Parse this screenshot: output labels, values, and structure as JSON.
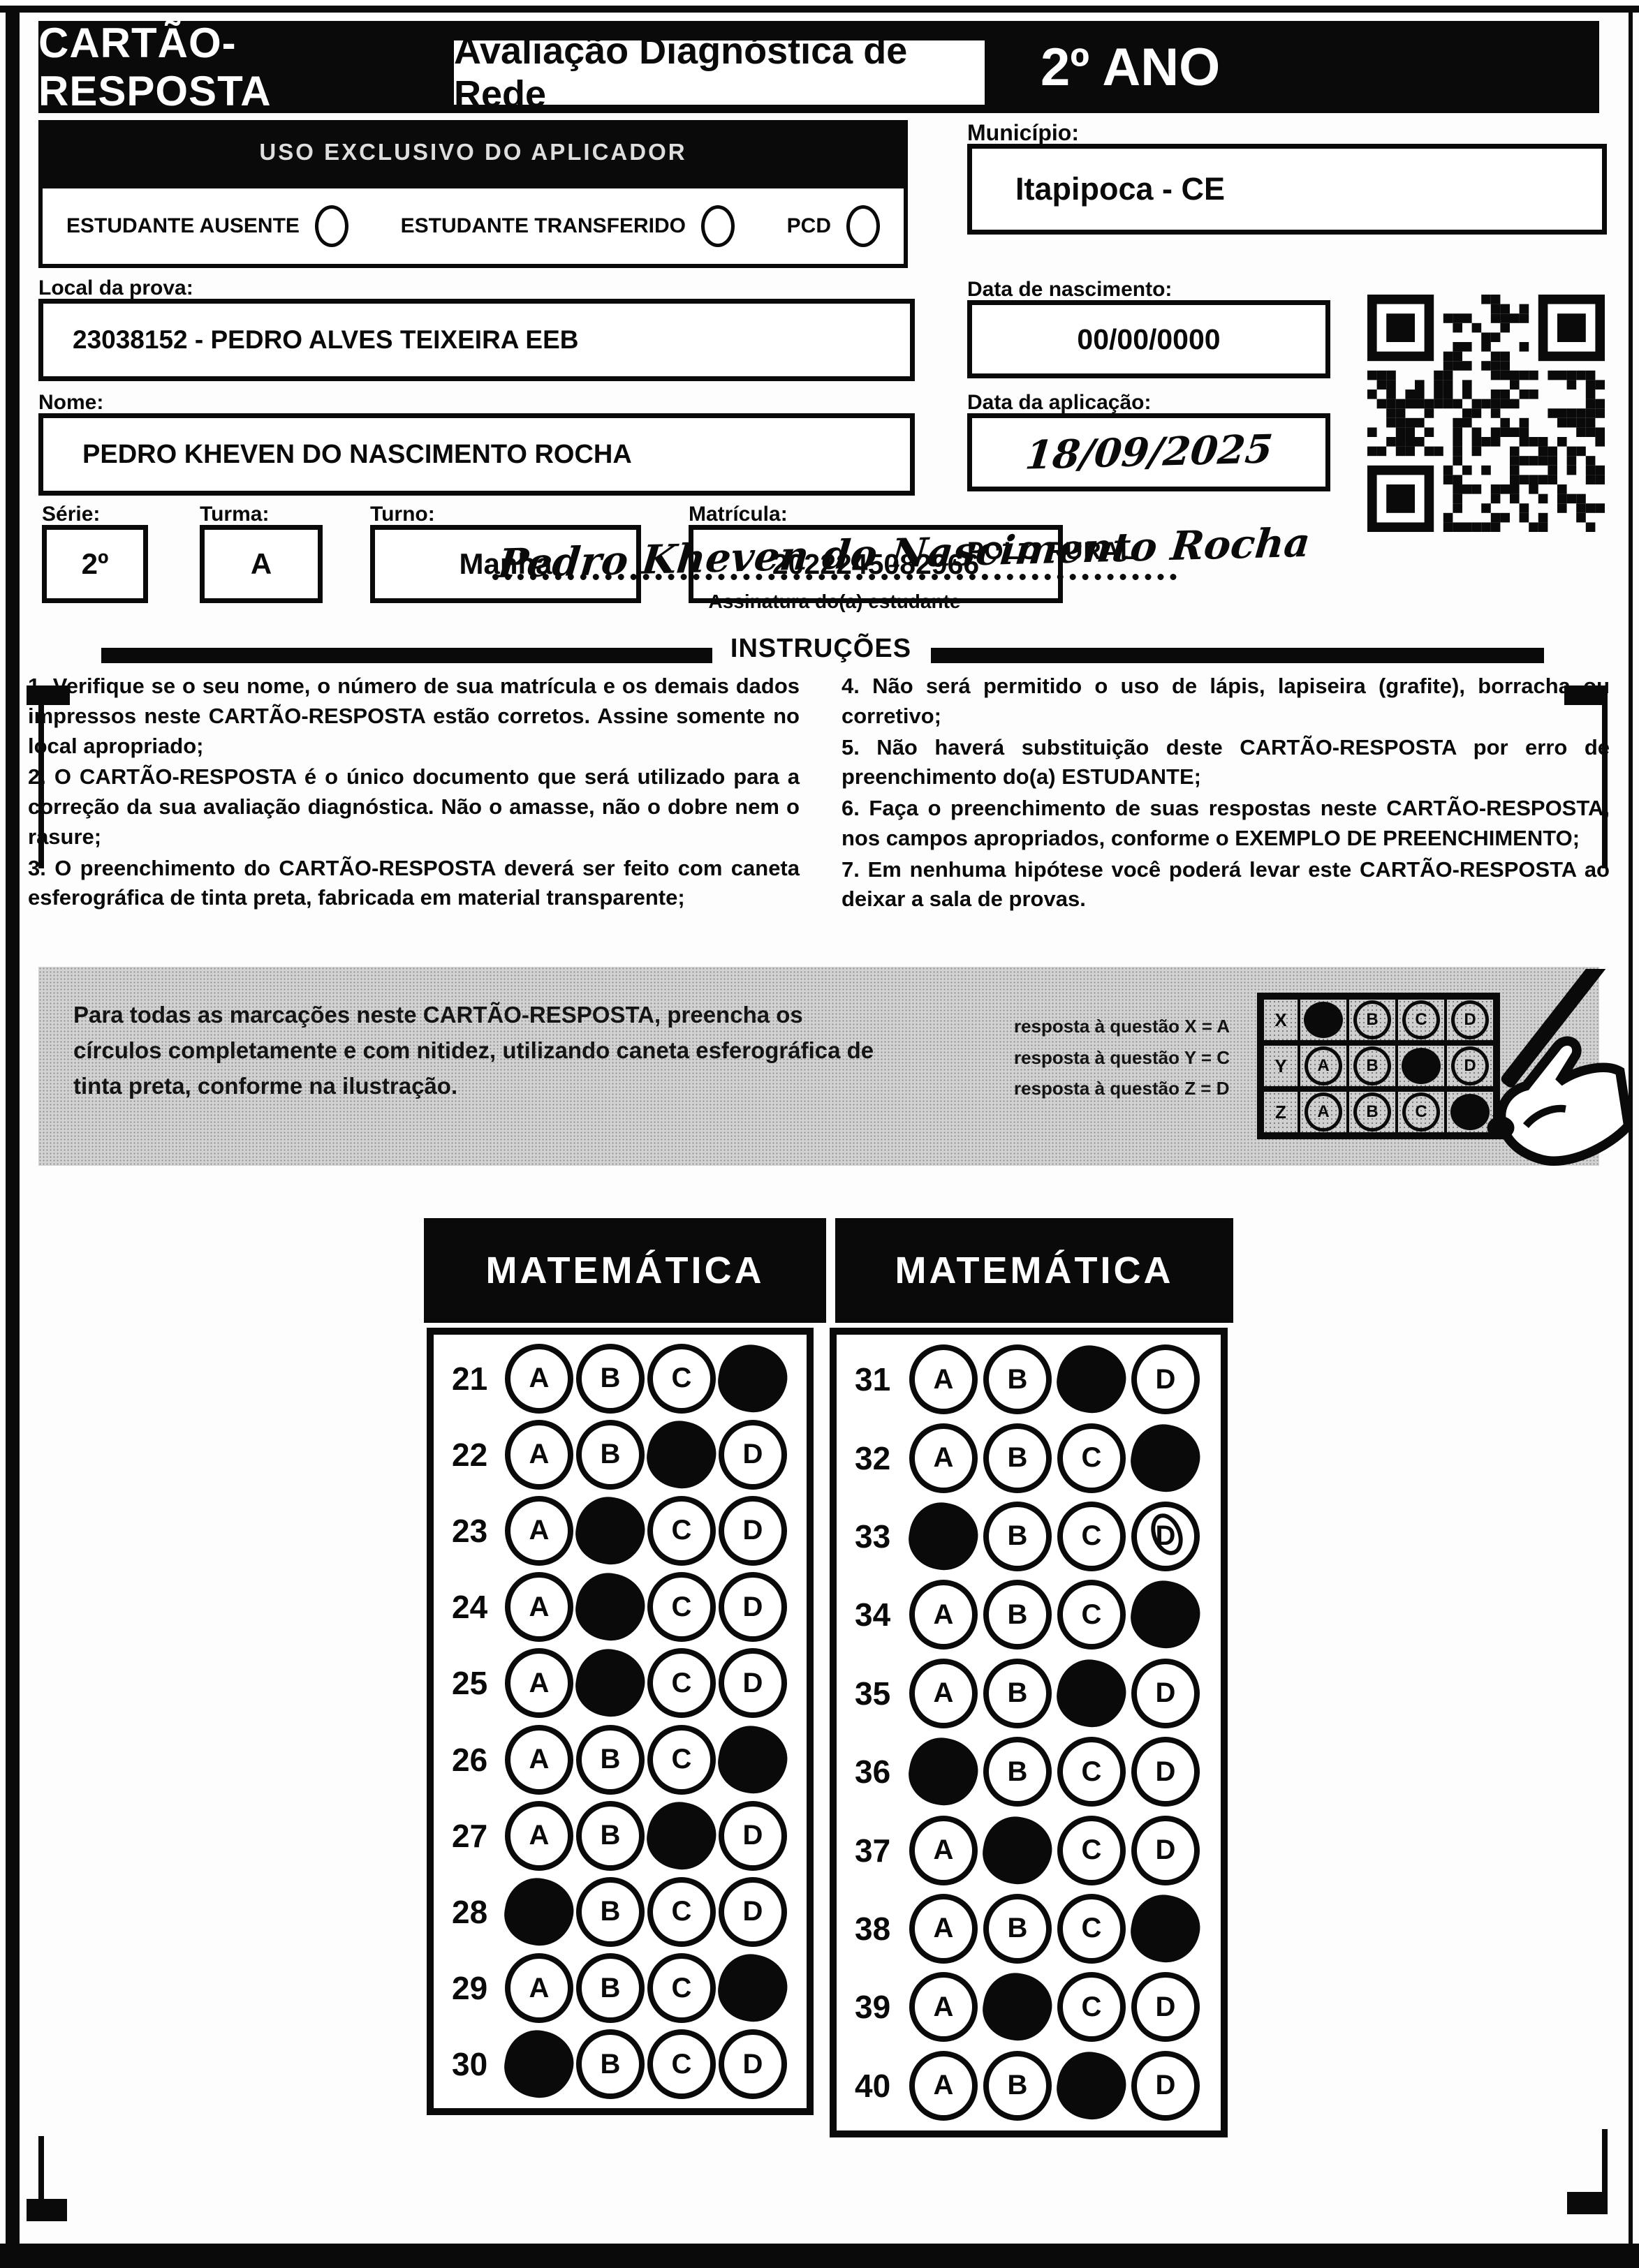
{
  "header": {
    "card_title": "CARTÃO-RESPOSTA",
    "assessment_title": "Avaliação Diagnóstica de Rede",
    "grade": "2º ANO"
  },
  "aplicador": {
    "bar_label": "USO EXCLUSIVO DO APLICADOR",
    "checkboxes": [
      {
        "label": "ESTUDANTE AUSENTE",
        "checked": false
      },
      {
        "label": "ESTUDANTE TRANSFERIDO",
        "checked": false
      },
      {
        "label": "PCD",
        "checked": false
      }
    ]
  },
  "student": {
    "local_label": "Local da prova:",
    "local_value": "23038152 - PEDRO ALVES TEIXEIRA EEB",
    "nome_label": "Nome:",
    "nome_value": "PEDRO KHEVEN DO NASCIMENTO ROCHA",
    "serie_label": "Série:",
    "serie_value": "2º",
    "turma_label": "Turma:",
    "turma_value": "A",
    "turno_label": "Turno:",
    "turno_value": "Manha",
    "matricula_label": "Matrícula:",
    "matricula_value": "2022245082966",
    "municipio_label": "Município:",
    "municipio_value": "Itapipoca - CE",
    "nascimento_label": "Data de nascimento:",
    "nascimento_value": "00/00/0000",
    "aplicacao_label": "Data da aplicação:",
    "aplicacao_value": "18/09/2025",
    "polo": "POLO RURAL",
    "assinatura_value": "Pedro Kheven do Nascimento Rocha",
    "assinatura_label": "Assinatura do(a) estudante"
  },
  "instructions": {
    "title": "INSTRUÇÕES",
    "left_items": [
      "1. Verifique se o seu nome, o número de sua matrícula e os demais dados impressos neste CARTÃO-RESPOSTA estão corretos. Assine somente no local apropriado;",
      "2. O CARTÃO-RESPOSTA é o único documento que será utilizado para a correção da sua avaliação diagnóstica. Não o amasse, não o dobre nem o rasure;",
      "3. O preenchimento do CARTÃO-RESPOSTA deverá ser feito com caneta esferográfica de tinta preta, fabricada em material transparente;"
    ],
    "right_items": [
      "4. Não será permitido o uso de lápis, lapiseira (grafite), borracha ou corretivo;",
      "5. Não haverá substituição deste CARTÃO-RESPOSTA por erro de preenchimento do(a) ESTUDANTE;",
      "6. Faça o preenchimento de suas respostas neste CARTÃO-RESPOSTA, nos campos apropriados, conforme o EXEMPLO DE PREENCHIMENTO;",
      "7. Em nenhuma hipótese você poderá levar este CARTÃO-RESPOSTA ao deixar a sala de provas."
    ]
  },
  "example": {
    "text": "Para todas as marcações neste CARTÃO-RESPOSTA, preencha os círculos completamente e com nitidez, utilizando caneta esferográfica de tinta preta, conforme na ilustração.",
    "caption_lines": [
      "resposta à questão X = A",
      "resposta à questão Y = C",
      "resposta à questão Z = D"
    ],
    "options": [
      "A",
      "B",
      "C",
      "D"
    ],
    "rows": [
      {
        "label": "X",
        "filled": "A"
      },
      {
        "label": "Y",
        "filled": "C"
      },
      {
        "label": "Z",
        "filled": "D"
      }
    ]
  },
  "answers": {
    "options": [
      "A",
      "B",
      "C",
      "D"
    ],
    "sections": [
      {
        "title": "MATEMÁTICA",
        "questions": [
          {
            "n": 21,
            "marked": "D"
          },
          {
            "n": 22,
            "marked": "C"
          },
          {
            "n": 23,
            "marked": "B"
          },
          {
            "n": 24,
            "marked": "B"
          },
          {
            "n": 25,
            "marked": "B"
          },
          {
            "n": 26,
            "marked": "D"
          },
          {
            "n": 27,
            "marked": "C"
          },
          {
            "n": 28,
            "marked": "A"
          },
          {
            "n": 29,
            "marked": "D"
          },
          {
            "n": 30,
            "marked": "A"
          }
        ]
      },
      {
        "title": "MATEMÁTICA",
        "questions": [
          {
            "n": 31,
            "marked": "C"
          },
          {
            "n": 32,
            "marked": "D"
          },
          {
            "n": 33,
            "marked": "A",
            "pen_mark_on": "D"
          },
          {
            "n": 34,
            "marked": "D"
          },
          {
            "n": 35,
            "marked": "C"
          },
          {
            "n": 36,
            "marked": "A"
          },
          {
            "n": 37,
            "marked": "B"
          },
          {
            "n": 38,
            "marked": "D"
          },
          {
            "n": 39,
            "marked": "B"
          },
          {
            "n": 40,
            "marked": "C"
          }
        ]
      }
    ]
  },
  "colors": {
    "ink": "#0a0a0a",
    "paper": "#ffffff",
    "example_box_bg": "#d2d2d2"
  }
}
